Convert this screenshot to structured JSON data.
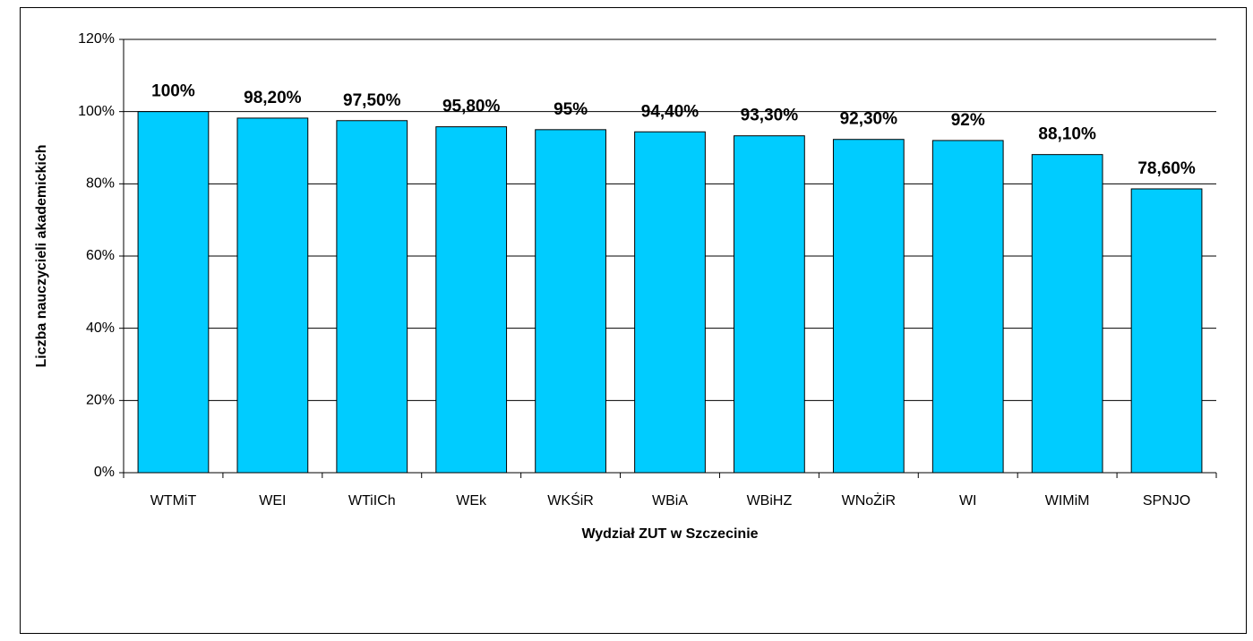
{
  "chart_data": {
    "type": "bar",
    "x_label": "Wydział ZUT w Szczecinie",
    "y_label": "Liczba nauczycieli akademickich",
    "categories": [
      "WTMiT",
      "WEI",
      "WTiICh",
      "WEk",
      "WKŚiR",
      "WBiA",
      "WBiHZ",
      "WNoŻiR",
      "WI",
      "WIMiM",
      "SPNJO"
    ],
    "values": [
      100,
      98.2,
      97.5,
      95.8,
      95,
      94.4,
      93.3,
      92.3,
      92,
      88.1,
      78.6
    ],
    "value_labels": [
      "100%",
      "98,20%",
      "97,50%",
      "95,80%",
      "95%",
      "94,40%",
      "93,30%",
      "92,30%",
      "92%",
      "88,10%",
      "78,60%"
    ],
    "color": "#00ccff",
    "ylim": [
      0,
      120
    ],
    "yticks": [
      {
        "value": 0,
        "label": "0%"
      },
      {
        "value": 20,
        "label": "20%"
      },
      {
        "value": 40,
        "label": "40%"
      },
      {
        "value": 60,
        "label": "60%"
      },
      {
        "value": 80,
        "label": "80%"
      },
      {
        "value": 100,
        "label": "100%"
      },
      {
        "value": 120,
        "label": "120%"
      }
    ],
    "grid": true
  }
}
